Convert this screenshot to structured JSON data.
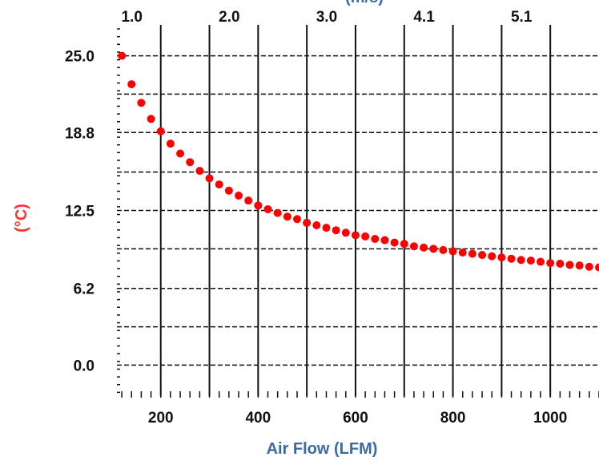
{
  "chart_data": {
    "type": "scatter",
    "title": "",
    "xlabel": "Air Flow (LFM)",
    "x2label": "(m/s)",
    "ylabel": "(°C)",
    "xlim": [
      110,
      1100
    ],
    "ylim": [
      -2.5,
      27.5
    ],
    "x_ticks": [
      {
        "value": 200,
        "label": "200"
      },
      {
        "value": 400,
        "label": "400"
      },
      {
        "value": 600,
        "label": "600"
      },
      {
        "value": 800,
        "label": "800"
      },
      {
        "value": 1000,
        "label": "1000"
      }
    ],
    "x2_ticks": [
      {
        "value": 200,
        "label": "1.0"
      },
      {
        "value": 400,
        "label": "2.0"
      },
      {
        "value": 600,
        "label": "3.0"
      },
      {
        "value": 800,
        "label": "4.1"
      },
      {
        "value": 1000,
        "label": "5.1"
      }
    ],
    "y_ticks": [
      {
        "value": 0.0,
        "label": "0.0"
      },
      {
        "value": 6.2,
        "label": "6.2"
      },
      {
        "value": 12.5,
        "label": "12.5"
      },
      {
        "value": 18.8,
        "label": "18.8"
      },
      {
        "value": 25.0,
        "label": "25.0"
      }
    ],
    "y_minor_gridlines": [
      3.1,
      9.4,
      15.6,
      21.9
    ],
    "grid": true,
    "colors": {
      "points": "#ff0000",
      "xlabel": "#3b6aa8",
      "ylabel": "#ff3333",
      "grid": "#111111"
    },
    "series": [
      {
        "x": [
          120,
          140,
          160,
          180,
          200,
          220,
          240,
          260,
          280,
          300,
          320,
          340,
          360,
          380,
          400,
          420,
          440,
          460,
          480,
          500,
          520,
          540,
          560,
          580,
          600,
          620,
          640,
          660,
          680,
          700,
          720,
          740,
          760,
          780,
          800,
          820,
          840,
          860,
          880,
          900,
          920,
          940,
          960,
          980,
          1000,
          1020,
          1040,
          1060,
          1080,
          1100
        ],
        "values": [
          25.0,
          22.7,
          21.2,
          19.9,
          18.9,
          17.9,
          17.1,
          16.4,
          15.7,
          15.1,
          14.6,
          14.1,
          13.7,
          13.3,
          12.9,
          12.6,
          12.3,
          12.0,
          11.8,
          11.5,
          11.3,
          11.1,
          10.9,
          10.7,
          10.5,
          10.4,
          10.2,
          10.1,
          9.9,
          9.8,
          9.6,
          9.5,
          9.4,
          9.3,
          9.2,
          9.1,
          9.0,
          8.9,
          8.8,
          8.7,
          8.6,
          8.5,
          8.45,
          8.35,
          8.25,
          8.2,
          8.1,
          8.05,
          7.95,
          7.9
        ]
      }
    ]
  }
}
